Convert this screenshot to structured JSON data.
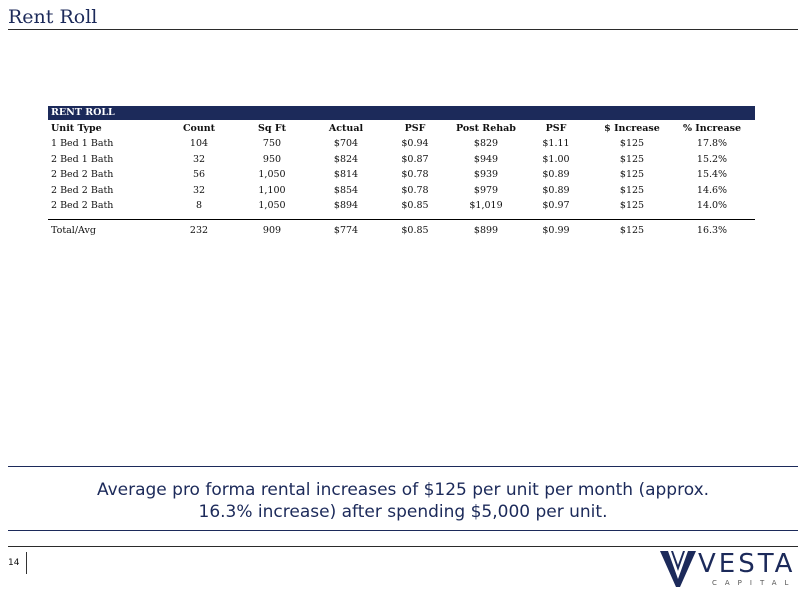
{
  "page": {
    "title": "Rent Roll",
    "number": "14"
  },
  "table": {
    "band_label": "RENT ROLL",
    "headers": [
      "Unit Type",
      "Count",
      "Sq Ft",
      "Actual",
      "PSF",
      "Post Rehab",
      "PSF",
      "$ Increase",
      "% Increase"
    ],
    "rows": [
      [
        "1 Bed 1 Bath",
        "104",
        "750",
        "$704",
        "$0.94",
        "$829",
        "$1.11",
        "$125",
        "17.8%"
      ],
      [
        "2 Bed 1 Bath",
        "32",
        "950",
        "$824",
        "$0.87",
        "$949",
        "$1.00",
        "$125",
        "15.2%"
      ],
      [
        "2 Bed 2 Bath",
        "56",
        "1,050",
        "$814",
        "$0.78",
        "$939",
        "$0.89",
        "$125",
        "15.4%"
      ],
      [
        "2 Bed 2 Bath",
        "32",
        "1,100",
        "$854",
        "$0.78",
        "$979",
        "$0.89",
        "$125",
        "14.6%"
      ],
      [
        "2 Bed 2 Bath",
        "8",
        "1,050",
        "$894",
        "$0.85",
        "$1,019",
        "$0.97",
        "$125",
        "14.0%"
      ]
    ],
    "total": [
      "Total/Avg",
      "232",
      "909",
      "$774",
      "$0.85",
      "$899",
      "$0.99",
      "$125",
      "16.3%"
    ]
  },
  "summary": {
    "line1": "Average pro forma rental increases of $125 per unit per month (approx.",
    "line2": "16.3% increase) after spending $5,000 per unit."
  },
  "logo": {
    "name": "VESTA",
    "sub": "CAPITAL",
    "color": "#1c2a5a"
  }
}
